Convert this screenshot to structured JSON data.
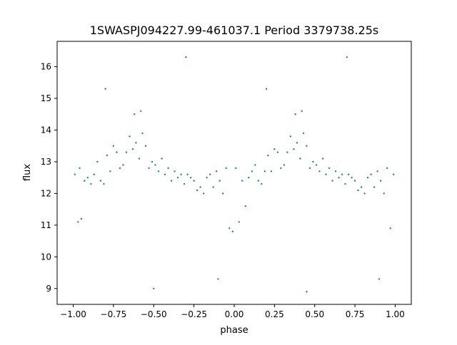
{
  "chart_data": {
    "type": "scatter",
    "title": "1SWASPJ094227.99-461037.1 Period 3379738.25s",
    "xlabel": "phase",
    "ylabel": "flux",
    "xlim": [
      -1.1,
      1.1
    ],
    "ylim": [
      8.5,
      16.8
    ],
    "x_ticks": [
      -1.0,
      -0.75,
      -0.5,
      -0.25,
      0.0,
      0.25,
      0.5,
      0.75,
      1.0
    ],
    "x_tick_labels": [
      "−1.00",
      "−0.75",
      "−0.50",
      "−0.25",
      "0.00",
      "0.25",
      "0.50",
      "0.75",
      "1.00"
    ],
    "y_ticks": [
      9,
      10,
      11,
      12,
      13,
      14,
      15,
      16
    ],
    "y_tick_labels": [
      "9",
      "10",
      "11",
      "12",
      "13",
      "14",
      "15",
      "16"
    ],
    "grid": false,
    "legend": "none",
    "marker_color": "#1f77b4",
    "series": [
      {
        "points": [
          [
            -0.99,
            12.6
          ],
          [
            -0.97,
            11.1
          ],
          [
            -0.96,
            12.8
          ],
          [
            -0.95,
            11.2
          ],
          [
            -0.93,
            12.4
          ],
          [
            -0.91,
            12.5
          ],
          [
            -0.89,
            12.3
          ],
          [
            -0.87,
            12.6
          ],
          [
            -0.85,
            13.0
          ],
          [
            -0.83,
            12.4
          ],
          [
            -0.81,
            12.3
          ],
          [
            -0.79,
            13.2
          ],
          [
            -0.77,
            12.7
          ],
          [
            -0.75,
            13.5
          ],
          [
            -0.73,
            13.3
          ],
          [
            -0.71,
            12.8
          ],
          [
            -0.69,
            12.9
          ],
          [
            -0.67,
            13.3
          ],
          [
            -0.65,
            13.8
          ],
          [
            -0.63,
            13.4
          ],
          [
            -0.61,
            13.6
          ],
          [
            -0.59,
            13.1
          ],
          [
            -0.57,
            13.9
          ],
          [
            -0.55,
            13.5
          ],
          [
            -0.53,
            12.8
          ],
          [
            -0.51,
            13.0
          ],
          [
            -0.49,
            12.9
          ],
          [
            -0.47,
            12.7
          ],
          [
            -0.45,
            13.1
          ],
          [
            -0.43,
            12.6
          ],
          [
            -0.41,
            12.8
          ],
          [
            -0.39,
            12.4
          ],
          [
            -0.37,
            12.7
          ],
          [
            -0.35,
            12.5
          ],
          [
            -0.33,
            12.6
          ],
          [
            -0.31,
            12.3
          ],
          [
            -0.29,
            12.6
          ],
          [
            -0.27,
            12.5
          ],
          [
            -0.25,
            12.4
          ],
          [
            -0.23,
            12.1
          ],
          [
            -0.21,
            12.2
          ],
          [
            -0.19,
            12.0
          ],
          [
            -0.17,
            12.5
          ],
          [
            -0.15,
            12.6
          ],
          [
            -0.13,
            12.2
          ],
          [
            -0.11,
            12.7
          ],
          [
            -0.09,
            12.4
          ],
          [
            -0.07,
            12.0
          ],
          [
            -0.05,
            12.8
          ],
          [
            -0.03,
            10.9
          ],
          [
            -0.01,
            10.8
          ],
          [
            0.01,
            12.8
          ],
          [
            0.03,
            11.1
          ],
          [
            0.05,
            12.4
          ],
          [
            0.07,
            11.6
          ],
          [
            0.09,
            12.5
          ],
          [
            0.11,
            12.7
          ],
          [
            0.13,
            12.9
          ],
          [
            0.15,
            12.4
          ],
          [
            0.17,
            12.3
          ],
          [
            0.19,
            12.7
          ],
          [
            0.21,
            13.2
          ],
          [
            0.23,
            12.7
          ],
          [
            0.25,
            13.4
          ],
          [
            0.27,
            13.3
          ],
          [
            0.29,
            12.8
          ],
          [
            0.31,
            12.9
          ],
          [
            0.33,
            13.3
          ],
          [
            0.35,
            13.8
          ],
          [
            0.37,
            13.4
          ],
          [
            0.39,
            13.6
          ],
          [
            0.41,
            13.1
          ],
          [
            0.43,
            13.9
          ],
          [
            0.45,
            13.5
          ],
          [
            0.47,
            12.8
          ],
          [
            0.49,
            13.0
          ],
          [
            0.51,
            12.9
          ],
          [
            0.53,
            12.7
          ],
          [
            0.55,
            13.1
          ],
          [
            0.57,
            12.6
          ],
          [
            0.59,
            12.8
          ],
          [
            0.61,
            12.4
          ],
          [
            0.63,
            12.7
          ],
          [
            0.65,
            12.5
          ],
          [
            0.67,
            12.6
          ],
          [
            0.69,
            12.3
          ],
          [
            0.71,
            12.6
          ],
          [
            0.73,
            12.5
          ],
          [
            0.75,
            12.4
          ],
          [
            0.77,
            12.1
          ],
          [
            0.79,
            12.2
          ],
          [
            0.81,
            12.0
          ],
          [
            0.83,
            12.5
          ],
          [
            0.85,
            12.6
          ],
          [
            0.87,
            12.2
          ],
          [
            0.89,
            12.7
          ],
          [
            0.91,
            12.4
          ],
          [
            0.93,
            12.0
          ],
          [
            0.95,
            12.8
          ],
          [
            0.97,
            10.9
          ],
          [
            0.99,
            12.6
          ],
          [
            -0.62,
            14.5
          ],
          [
            -0.58,
            14.6
          ],
          [
            0.38,
            14.5
          ],
          [
            0.42,
            14.6
          ],
          [
            -0.3,
            16.3
          ],
          [
            0.7,
            16.3
          ],
          [
            -0.8,
            15.3
          ],
          [
            0.2,
            15.3
          ],
          [
            -0.5,
            9.0
          ],
          [
            0.45,
            8.9
          ],
          [
            -0.1,
            9.3
          ],
          [
            0.9,
            9.3
          ]
        ]
      }
    ]
  }
}
